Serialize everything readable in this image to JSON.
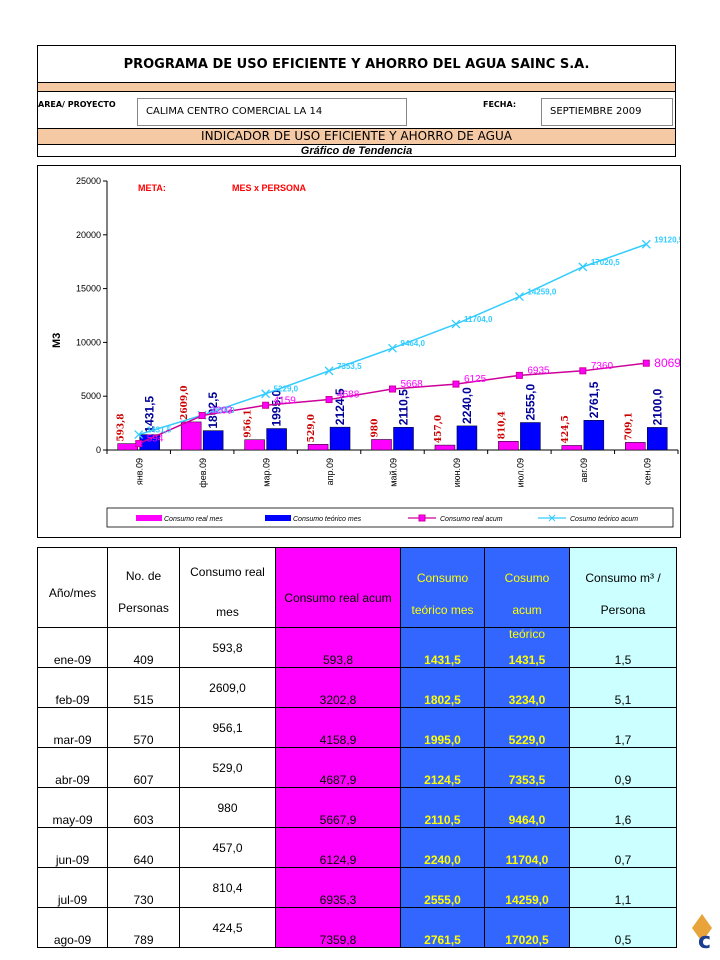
{
  "header": {
    "title": "PROGRAMA DE USO EFICIENTE Y AHORRO DEL AGUA SAINC S.A.",
    "area_label": "AREA/ PROYECTO",
    "area_value": "CALIMA CENTRO COMERCIAL LA 14",
    "fecha_label": "FECHA:",
    "fecha_value": "SEPTIEMBRE 2009",
    "indicator": "INDICADOR  DE USO EFICIENTE Y AHORRO DE AGUA",
    "subtitle": "Gráfico de Tendencia"
  },
  "colors": {
    "real_mes": "#ff00ff",
    "teorico_mes": "#0000ff",
    "real_acum": "#cc0099",
    "teorico_acum": "#33ccff",
    "header_band": "#f5c9a3"
  },
  "chart_data": {
    "type": "bar",
    "meta_label": "META:",
    "meta_value": "MES x PERSONA",
    "ylabel": "M3",
    "ylim": [
      0,
      25000
    ],
    "yticks": [
      "0",
      "5000",
      "10000",
      "15000",
      "20000",
      "25000"
    ],
    "grid": false,
    "legend_position": "bottom",
    "categories": [
      "янв.09",
      "фев.09",
      "мар.09",
      "апр.09",
      "май.09",
      "июн.09",
      "июл.09",
      "авг.09",
      "сен.09"
    ],
    "series": [
      {
        "name": "Consumo real mes",
        "type": "bar",
        "values": [
          593.8,
          2609.0,
          956.1,
          529.0,
          980,
          457.0,
          810.4,
          424.5,
          709.1
        ],
        "labels": [
          "593,8",
          "2609,0",
          "956,1",
          "529,0",
          "980",
          "457,0",
          "810,4",
          "424,5",
          "709,1"
        ]
      },
      {
        "name": "Consumo teórico mes",
        "type": "bar",
        "values": [
          1431.5,
          1802.5,
          1995.0,
          2124.5,
          2110.5,
          2240.0,
          2555.0,
          2761.5,
          2100.0
        ],
        "labels": [
          "1431,5",
          "1802,5",
          "1995,0",
          "2124,5",
          "2110,5",
          "2240,0",
          "2555,0",
          "2761,5",
          "2100,0"
        ]
      },
      {
        "name": "Consumo real acum",
        "type": "line",
        "values": [
          593.8,
          3202.8,
          4158.9,
          4687.9,
          5667.9,
          6124.9,
          6935.3,
          7359.8,
          8069
        ],
        "labels": [
          "594",
          "3203",
          "4159",
          "4688",
          "5668",
          "6125",
          "6935",
          "7360",
          "8069"
        ]
      },
      {
        "name": "Cosumo teórico acum",
        "type": "line",
        "values": [
          1431.5,
          3234.0,
          5229.0,
          7353.5,
          9464.0,
          11704.0,
          14259.0,
          17020.5,
          19120.5
        ],
        "labels": [
          "1431,5",
          "3234,0",
          "5229,0",
          "7353,5",
          "9464,0",
          "11704,0",
          "14259,0",
          "17020,5",
          "19120,5"
        ]
      }
    ]
  },
  "table": {
    "headers": {
      "anio_mes": "Año/mes",
      "personas_1": "No. de",
      "personas_2": "Personas",
      "real_1": "Consumo real",
      "real_2": "mes",
      "real_acum": "Consumo real acum",
      "teor_1": "Consumo",
      "teor_2": "teórico mes",
      "teor_acum_1": "Cosumo teórico",
      "teor_acum_2": "acum",
      "persona_1": "Consumo m³ /",
      "persona_2": "Persona"
    },
    "rows": [
      {
        "mes": "ene-09",
        "personas": "409",
        "real": "593,8",
        "real_acum": "593,8",
        "teor": "1431,5",
        "teor_acum": "1431,5",
        "per": "1,5"
      },
      {
        "mes": "feb-09",
        "personas": "515",
        "real": "2609,0",
        "real_acum": "3202,8",
        "teor": "1802,5",
        "teor_acum": "3234,0",
        "per": "5,1"
      },
      {
        "mes": "mar-09",
        "personas": "570",
        "real": "956,1",
        "real_acum": "4158,9",
        "teor": "1995,0",
        "teor_acum": "5229,0",
        "per": "1,7"
      },
      {
        "mes": "abr-09",
        "personas": "607",
        "real": "529,0",
        "real_acum": "4687,9",
        "teor": "2124,5",
        "teor_acum": "7353,5",
        "per": "0,9"
      },
      {
        "mes": "may-09",
        "personas": "603",
        "real": "980",
        "real_acum": "5667,9",
        "teor": "2110,5",
        "teor_acum": "9464,0",
        "per": "1,6"
      },
      {
        "mes": "jun-09",
        "personas": "640",
        "real": "457,0",
        "real_acum": "6124,9",
        "teor": "2240,0",
        "teor_acum": "11704,0",
        "per": "0,7"
      },
      {
        "mes": "jul-09",
        "personas": "730",
        "real": "810,4",
        "real_acum": "6935,3",
        "teor": "2555,0",
        "teor_acum": "14259,0",
        "per": "1,1"
      },
      {
        "mes": "ago-09",
        "personas": "789",
        "real": "424,5",
        "real_acum": "7359,8",
        "teor": "2761,5",
        "teor_acum": "17020,5",
        "per": "0,5"
      }
    ]
  }
}
